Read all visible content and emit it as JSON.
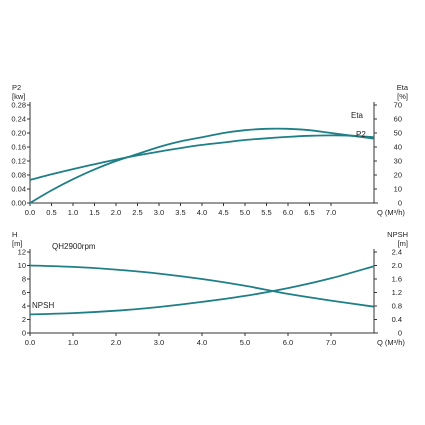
{
  "colors": {
    "curve": "#1f7f86",
    "curve_light": "#3aa7ae",
    "frame": "#333333",
    "text": "#222222"
  },
  "chart_data": [
    {
      "type": "line",
      "title": "",
      "grid": false,
      "xlabel": "Q (M³/h)",
      "x_ticks": [
        "0.0",
        "0.5",
        "1.0",
        "1.5",
        "2.0",
        "2.5",
        "3.0",
        "3.5",
        "4.0",
        "4.5",
        "5.0",
        "5.5",
        "6.0",
        "6.5",
        "7.0"
      ],
      "xlim": [
        0,
        8
      ],
      "left_axis": {
        "label_lines": [
          "P2",
          "[kw]"
        ],
        "ylim": [
          0,
          0.28
        ],
        "ticks": [
          "0.00",
          "0.04",
          "0.08",
          "0.12",
          "0.16",
          "0.20",
          "0.24",
          "0.28"
        ]
      },
      "right_axis": {
        "label_lines": [
          "Eta",
          "[%]"
        ],
        "ylim": [
          0,
          70
        ],
        "ticks": [
          "0",
          "10",
          "20",
          "30",
          "40",
          "50",
          "60",
          "70"
        ]
      },
      "series": [
        {
          "name": "Eta",
          "axis": "right",
          "x": [
            0,
            0.5,
            1,
            1.5,
            2,
            2.5,
            3,
            3.5,
            4,
            4.5,
            5,
            5.5,
            6,
            6.5,
            7,
            7.5,
            8
          ],
          "y": [
            0,
            9,
            17,
            24,
            30,
            35,
            40,
            44,
            47,
            50,
            52,
            53,
            53,
            52,
            50,
            48,
            46
          ]
        },
        {
          "name": "P2",
          "axis": "left",
          "x": [
            0,
            0.5,
            1,
            1.5,
            2,
            2.5,
            3,
            3.5,
            4,
            4.5,
            5,
            5.5,
            6,
            6.5,
            7,
            7.5,
            8
          ],
          "y": [
            0.066,
            0.082,
            0.097,
            0.111,
            0.124,
            0.136,
            0.147,
            0.157,
            0.166,
            0.173,
            0.18,
            0.185,
            0.189,
            0.192,
            0.193,
            0.192,
            0.188
          ]
        }
      ]
    },
    {
      "type": "line",
      "title": "",
      "grid": false,
      "xlabel": "Q (M³/h)",
      "x_ticks": [
        "0.0",
        "1.0",
        "2.0",
        "3.0",
        "4.0",
        "5.0",
        "6.0",
        "7.0"
      ],
      "xlim": [
        0,
        8
      ],
      "left_axis": {
        "label_lines": [
          "H",
          "[m]"
        ],
        "ylim": [
          0,
          12
        ],
        "ticks": [
          "0",
          "2",
          "4",
          "6",
          "8",
          "10",
          "12"
        ]
      },
      "right_axis": {
        "label_lines": [
          "NPSH",
          "[m]"
        ],
        "ylim": [
          0,
          2.4
        ],
        "ticks": [
          "0",
          "0.4",
          "0.8",
          "1.2",
          "1.6",
          "2.0",
          "2.4"
        ]
      },
      "series": [
        {
          "name": "QH2900rpm",
          "axis": "left",
          "x": [
            0,
            1,
            2,
            3,
            4,
            5,
            6,
            7,
            8
          ],
          "y": [
            10.0,
            9.8,
            9.4,
            8.8,
            8.0,
            7.0,
            5.8,
            4.8,
            3.9
          ]
        },
        {
          "name": "NPSH",
          "axis": "right",
          "x": [
            0,
            1,
            2,
            3,
            4,
            5,
            6,
            7,
            8
          ],
          "y": [
            0.55,
            0.59,
            0.66,
            0.77,
            0.92,
            1.1,
            1.33,
            1.62,
            1.98
          ]
        }
      ]
    }
  ]
}
